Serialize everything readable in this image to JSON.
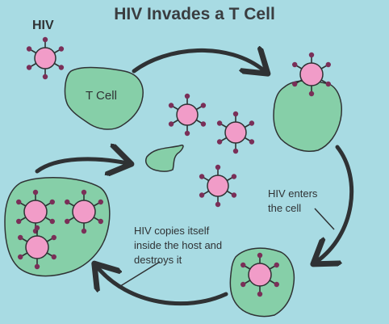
{
  "title": "HIV Invades a T Cell",
  "labels": {
    "hiv": "HIV",
    "t_cell": "T Cell",
    "enters_line1": "HIV enters",
    "enters_line2": "the cell",
    "copies_line1": "HIV copies itself",
    "copies_line2": "inside the host and",
    "copies_line3": "destroys it"
  },
  "colors": {
    "background": "#a8dbe3",
    "cell_fill": "#86cfa8",
    "virus_fill": "#f19cc8",
    "arrow": "#2f3234"
  }
}
